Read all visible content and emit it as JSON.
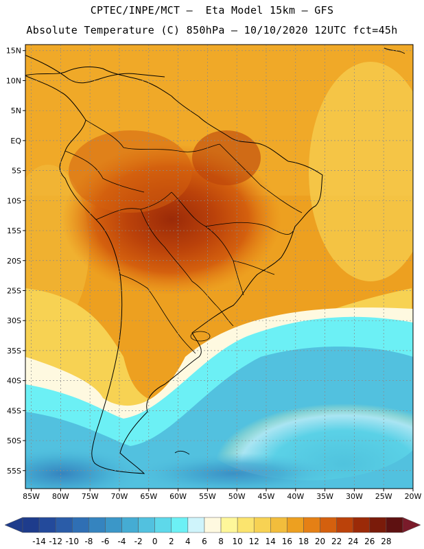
{
  "title_line1": "CPTEC/INPE/MCT –  Eta Model 15km – GFS",
  "title_line2": "Absolute Temperature (C) 850hPa – 10/10/2020 12UTC fct=45h",
  "lat_labels": [
    "15N",
    "10N",
    "5N",
    "EQ",
    "5S",
    "10S",
    "15S",
    "20S",
    "25S",
    "30S",
    "35S",
    "40S",
    "45S",
    "50S",
    "55S"
  ],
  "lat_values": [
    15,
    10,
    5,
    0,
    -5,
    -10,
    -15,
    -20,
    -25,
    -30,
    -35,
    -40,
    -45,
    -50,
    -55
  ],
  "lon_labels": [
    "85W",
    "80W",
    "75W",
    "70W",
    "65W",
    "60W",
    "55W",
    "50W",
    "45W",
    "40W",
    "35W",
    "30W",
    "25W",
    "20W"
  ],
  "lon_values": [
    -85,
    -80,
    -75,
    -70,
    -65,
    -60,
    -55,
    -50,
    -45,
    -40,
    -35,
    -30,
    -25,
    -20
  ],
  "map_extent": {
    "lon": [
      -86,
      -20
    ],
    "lat": [
      -58,
      16
    ]
  },
  "colorbar": {
    "labels": [
      "-14",
      "-12",
      "-10",
      "-8",
      "-6",
      "-4",
      "-2",
      "0",
      "2",
      "4",
      "6",
      "8",
      "10",
      "12",
      "14",
      "16",
      "18",
      "20",
      "22",
      "24",
      "26",
      "28"
    ],
    "colors": [
      "#1e3c8c",
      "#234a9b",
      "#2a5ca8",
      "#2f6fb4",
      "#3584bf",
      "#3b97c8",
      "#45acd3",
      "#52c1df",
      "#5ed8ea",
      "#6cf0f5",
      "#cff4fb",
      "#fef9e0",
      "#fef79a",
      "#fbe46e",
      "#f7d253",
      "#f2bd3c",
      "#eda020",
      "#e58015",
      "#d4600e",
      "#bb420a",
      "#9b2a08",
      "#7a1b0a",
      "#5e1111"
    ]
  },
  "colors": {
    "border": "#000000",
    "grid": "#8a8a8a",
    "sea": "#e9a72a"
  }
}
